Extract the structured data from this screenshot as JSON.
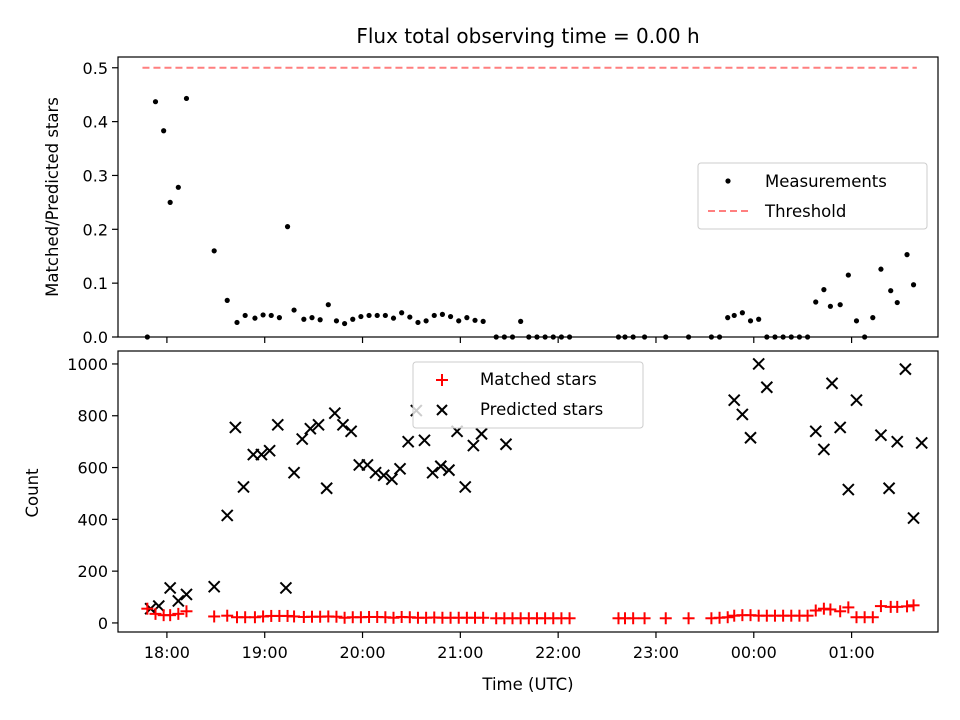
{
  "chart_data": [
    {
      "type": "scatter",
      "title": "Flux total observing time = 0.00 h",
      "xlabel": "",
      "ylabel": "Matched/Predicted stars",
      "ylim": [
        0,
        0.52
      ],
      "yticks": [
        "0.0",
        "0.1",
        "0.2",
        "0.3",
        "0.4",
        "0.5"
      ],
      "xlim": [
        "17:30",
        "01:53"
      ],
      "grid": false,
      "legend": {
        "placement": "right",
        "entries": [
          {
            "label": "Measurements",
            "color": "#000000",
            "marker": "dot"
          },
          {
            "label": "Threshold",
            "color": "#ff7f7f",
            "marker": "dashed-line"
          }
        ]
      },
      "threshold": {
        "name": "Threshold",
        "value": 0.5,
        "x_range": [
          "17:45",
          "01:40"
        ],
        "color": "#ff7f7f"
      },
      "series": [
        {
          "name": "Measurements",
          "color": "#000000",
          "points": [
            [
              "17:48",
              0.0
            ],
            [
              "17:53",
              0.437
            ],
            [
              "17:58",
              0.383
            ],
            [
              "18:02",
              0.25
            ],
            [
              "18:07",
              0.278
            ],
            [
              "18:12",
              0.443
            ],
            [
              "18:29",
              0.16
            ],
            [
              "18:37",
              0.068
            ],
            [
              "18:43",
              0.027
            ],
            [
              "18:48",
              0.04
            ],
            [
              "18:54",
              0.035
            ],
            [
              "18:59",
              0.041
            ],
            [
              "19:04",
              0.04
            ],
            [
              "19:09",
              0.036
            ],
            [
              "19:14",
              0.205
            ],
            [
              "19:18",
              0.05
            ],
            [
              "19:24",
              0.033
            ],
            [
              "19:29",
              0.036
            ],
            [
              "19:34",
              0.032
            ],
            [
              "19:39",
              0.06
            ],
            [
              "19:44",
              0.03
            ],
            [
              "19:49",
              0.025
            ],
            [
              "19:54",
              0.033
            ],
            [
              "19:59",
              0.038
            ],
            [
              "20:04",
              0.04
            ],
            [
              "20:09",
              0.04
            ],
            [
              "20:14",
              0.04
            ],
            [
              "20:19",
              0.035
            ],
            [
              "20:24",
              0.045
            ],
            [
              "20:29",
              0.037
            ],
            [
              "20:34",
              0.027
            ],
            [
              "20:39",
              0.03
            ],
            [
              "20:44",
              0.04
            ],
            [
              "20:49",
              0.042
            ],
            [
              "20:54",
              0.038
            ],
            [
              "20:59",
              0.03
            ],
            [
              "21:04",
              0.036
            ],
            [
              "21:09",
              0.031
            ],
            [
              "21:14",
              0.029
            ],
            [
              "21:22",
              0.0
            ],
            [
              "21:27",
              0.0
            ],
            [
              "21:32",
              0.0
            ],
            [
              "21:37",
              0.029
            ],
            [
              "21:42",
              0.0
            ],
            [
              "21:47",
              0.0
            ],
            [
              "21:52",
              0.0
            ],
            [
              "21:57",
              0.0
            ],
            [
              "22:02",
              0.0
            ],
            [
              "22:07",
              0.0
            ],
            [
              "22:37",
              0.0
            ],
            [
              "22:41",
              0.0
            ],
            [
              "22:46",
              0.0
            ],
            [
              "22:53",
              0.0
            ],
            [
              "23:06",
              0.0
            ],
            [
              "23:20",
              0.0
            ],
            [
              "23:34",
              0.0
            ],
            [
              "23:39",
              0.0
            ],
            [
              "23:44",
              0.036
            ],
            [
              "23:48",
              0.04
            ],
            [
              "23:53",
              0.045
            ],
            [
              "23:58",
              0.03
            ],
            [
              "00:03",
              0.033
            ],
            [
              "00:08",
              0.0
            ],
            [
              "00:13",
              0.0
            ],
            [
              "00:18",
              0.0
            ],
            [
              "00:23",
              0.0
            ],
            [
              "00:28",
              0.0
            ],
            [
              "00:33",
              0.0
            ],
            [
              "00:38",
              0.065
            ],
            [
              "00:43",
              0.088
            ],
            [
              "00:47",
              0.057
            ],
            [
              "00:53",
              0.06
            ],
            [
              "00:58",
              0.115
            ],
            [
              "01:03",
              0.03
            ],
            [
              "01:08",
              0.0
            ],
            [
              "01:13",
              0.036
            ],
            [
              "01:18",
              0.126
            ],
            [
              "01:24",
              0.086
            ],
            [
              "01:28",
              0.064
            ],
            [
              "01:34",
              0.153
            ],
            [
              "01:38",
              0.097
            ]
          ]
        }
      ]
    },
    {
      "type": "scatter",
      "title": "",
      "xlabel": "Time (UTC)",
      "ylabel": "Count",
      "ylim": [
        -35,
        1050
      ],
      "yticks": [
        "0",
        "200",
        "400",
        "600",
        "800",
        "1000"
      ],
      "xlim": [
        "17:30",
        "01:53"
      ],
      "xticks": [
        "18:00",
        "19:00",
        "20:00",
        "21:00",
        "22:00",
        "23:00",
        "00:00",
        "01:00"
      ],
      "grid": false,
      "legend": {
        "placement": "top-center",
        "entries": [
          {
            "label": "Matched stars",
            "color": "#ff0000",
            "marker": "plus"
          },
          {
            "label": "Predicted stars",
            "color": "#000000",
            "marker": "x"
          }
        ]
      },
      "series": [
        {
          "name": "Matched stars",
          "color": "#ff0000",
          "points": [
            [
              "17:48",
              55
            ],
            [
              "17:53",
              35
            ],
            [
              "17:58",
              30
            ],
            [
              "18:02",
              30
            ],
            [
              "18:07",
              35
            ],
            [
              "18:12",
              45
            ],
            [
              "18:29",
              25
            ],
            [
              "18:37",
              28
            ],
            [
              "18:43",
              22
            ],
            [
              "18:48",
              22
            ],
            [
              "18:54",
              22
            ],
            [
              "18:59",
              25
            ],
            [
              "19:04",
              27
            ],
            [
              "19:09",
              27
            ],
            [
              "19:14",
              27
            ],
            [
              "19:18",
              25
            ],
            [
              "19:24",
              23
            ],
            [
              "19:29",
              24
            ],
            [
              "19:34",
              24
            ],
            [
              "19:39",
              25
            ],
            [
              "19:44",
              24
            ],
            [
              "19:49",
              20
            ],
            [
              "19:54",
              22
            ],
            [
              "19:59",
              22
            ],
            [
              "20:04",
              23
            ],
            [
              "20:09",
              23
            ],
            [
              "20:14",
              22
            ],
            [
              "20:19",
              20
            ],
            [
              "20:24",
              23
            ],
            [
              "20:29",
              22
            ],
            [
              "20:34",
              20
            ],
            [
              "20:39",
              20
            ],
            [
              "20:44",
              21
            ],
            [
              "20:49",
              20
            ],
            [
              "20:54",
              20
            ],
            [
              "20:59",
              20
            ],
            [
              "21:04",
              20
            ],
            [
              "21:09",
              20
            ],
            [
              "21:14",
              20
            ],
            [
              "21:22",
              18
            ],
            [
              "21:27",
              18
            ],
            [
              "21:32",
              18
            ],
            [
              "21:37",
              18
            ],
            [
              "21:42",
              18
            ],
            [
              "21:47",
              18
            ],
            [
              "21:52",
              18
            ],
            [
              "21:57",
              18
            ],
            [
              "22:02",
              18
            ],
            [
              "22:07",
              18
            ],
            [
              "22:37",
              18
            ],
            [
              "22:41",
              18
            ],
            [
              "22:46",
              18
            ],
            [
              "22:53",
              18
            ],
            [
              "23:06",
              18
            ],
            [
              "23:20",
              18
            ],
            [
              "23:34",
              18
            ],
            [
              "23:39",
              20
            ],
            [
              "23:44",
              22
            ],
            [
              "23:48",
              28
            ],
            [
              "23:53",
              30
            ],
            [
              "23:58",
              30
            ],
            [
              "00:03",
              28
            ],
            [
              "00:08",
              28
            ],
            [
              "00:13",
              28
            ],
            [
              "00:18",
              28
            ],
            [
              "00:23",
              28
            ],
            [
              "00:28",
              28
            ],
            [
              "00:33",
              28
            ],
            [
              "00:38",
              48
            ],
            [
              "00:43",
              55
            ],
            [
              "00:47",
              52
            ],
            [
              "00:53",
              45
            ],
            [
              "00:58",
              60
            ],
            [
              "01:03",
              22
            ],
            [
              "01:08",
              22
            ],
            [
              "01:13",
              22
            ],
            [
              "01:18",
              65
            ],
            [
              "01:24",
              62
            ],
            [
              "01:28",
              62
            ],
            [
              "01:34",
              64
            ],
            [
              "01:38",
              68
            ]
          ]
        },
        {
          "name": "Predicted stars",
          "color": "#000000",
          "points": [
            [
              "17:50",
              55
            ],
            [
              "17:55",
              65
            ],
            [
              "18:02",
              135
            ],
            [
              "18:07",
              85
            ],
            [
              "18:12",
              110
            ],
            [
              "18:29",
              140
            ],
            [
              "18:37",
              415
            ],
            [
              "18:42",
              755
            ],
            [
              "18:47",
              525
            ],
            [
              "18:53",
              650
            ],
            [
              "18:58",
              650
            ],
            [
              "19:03",
              665
            ],
            [
              "19:08",
              765
            ],
            [
              "19:13",
              135
            ],
            [
              "19:18",
              580
            ],
            [
              "19:23",
              710
            ],
            [
              "19:28",
              750
            ],
            [
              "19:33",
              765
            ],
            [
              "19:38",
              520
            ],
            [
              "19:43",
              810
            ],
            [
              "19:48",
              765
            ],
            [
              "19:53",
              740
            ],
            [
              "19:58",
              610
            ],
            [
              "20:03",
              610
            ],
            [
              "20:08",
              580
            ],
            [
              "20:13",
              570
            ],
            [
              "20:18",
              555
            ],
            [
              "20:23",
              595
            ],
            [
              "20:28",
              700
            ],
            [
              "20:33",
              820
            ],
            [
              "20:38",
              705
            ],
            [
              "20:43",
              580
            ],
            [
              "20:48",
              605
            ],
            [
              "20:53",
              590
            ],
            [
              "20:58",
              740
            ],
            [
              "21:03",
              525
            ],
            [
              "21:08",
              685
            ],
            [
              "21:13",
              730
            ],
            [
              "21:28",
              690
            ],
            [
              "23:48",
              860
            ],
            [
              "23:53",
              805
            ],
            [
              "23:58",
              715
            ],
            [
              "00:03",
              1000
            ],
            [
              "00:08",
              910
            ],
            [
              "00:38",
              740
            ],
            [
              "00:43",
              670
            ],
            [
              "00:48",
              925
            ],
            [
              "00:53",
              755
            ],
            [
              "00:58",
              515
            ],
            [
              "01:03",
              860
            ],
            [
              "01:18",
              725
            ],
            [
              "01:23",
              520
            ],
            [
              "01:28",
              700
            ],
            [
              "01:33",
              980
            ],
            [
              "01:38",
              405
            ],
            [
              "01:43",
              695
            ]
          ]
        }
      ]
    }
  ]
}
